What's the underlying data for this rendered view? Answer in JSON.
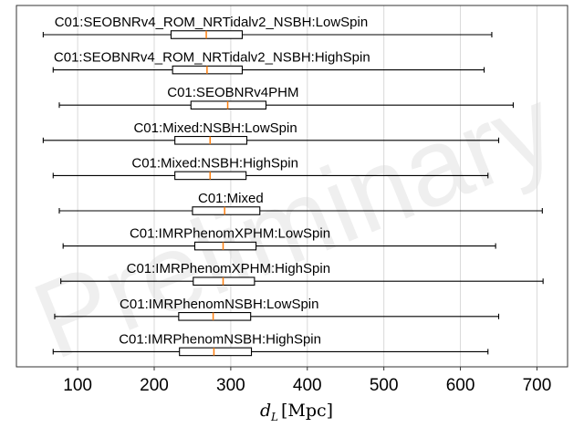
{
  "chart_data": {
    "type": "boxplot",
    "orientation": "horizontal",
    "xlabel": "d_L [Mpc]",
    "xlim": [
      20,
      740
    ],
    "xticks": [
      100,
      200,
      300,
      400,
      500,
      600,
      700
    ],
    "grid": "vertical",
    "watermark": "Preliminary",
    "colors": {
      "median": "#ff7f0e",
      "box": "#000000",
      "grid": "#d9d9d9"
    },
    "series": [
      {
        "name": "C01:SEOBNRv4_ROM_NRTidalv2_NSBH:LowSpin",
        "whisker_low": 55,
        "q1": 222,
        "median": 268,
        "q3": 315,
        "whisker_high": 641
      },
      {
        "name": "C01:SEOBNRv4_ROM_NRTidalv2_NSBH:HighSpin",
        "whisker_low": 68,
        "q1": 224,
        "median": 269,
        "q3": 315,
        "whisker_high": 631
      },
      {
        "name": "C01:SEOBNRv4PHM",
        "whisker_low": 76,
        "q1": 248,
        "median": 296,
        "q3": 346,
        "whisker_high": 669
      },
      {
        "name": "C01:Mixed:NSBH:LowSpin",
        "whisker_low": 55,
        "q1": 227,
        "median": 273,
        "q3": 321,
        "whisker_high": 650
      },
      {
        "name": "C01:Mixed:NSBH:HighSpin",
        "whisker_low": 68,
        "q1": 227,
        "median": 273,
        "q3": 320,
        "whisker_high": 636
      },
      {
        "name": "C01:Mixed",
        "whisker_low": 76,
        "q1": 250,
        "median": 292,
        "q3": 338,
        "whisker_high": 707
      },
      {
        "name": "C01:IMRPhenomXPHM:LowSpin",
        "whisker_low": 81,
        "q1": 253,
        "median": 290,
        "q3": 333,
        "whisker_high": 646
      },
      {
        "name": "C01:IMRPhenomXPHM:HighSpin",
        "whisker_low": 78,
        "q1": 251,
        "median": 290,
        "q3": 331,
        "whisker_high": 708
      },
      {
        "name": "C01:IMRPhenomNSBH:LowSpin",
        "whisker_low": 70,
        "q1": 232,
        "median": 277,
        "q3": 326,
        "whisker_high": 650
      },
      {
        "name": "C01:IMRPhenomNSBH:HighSpin",
        "whisker_low": 68,
        "q1": 233,
        "median": 278,
        "q3": 327,
        "whisker_high": 636
      }
    ]
  }
}
